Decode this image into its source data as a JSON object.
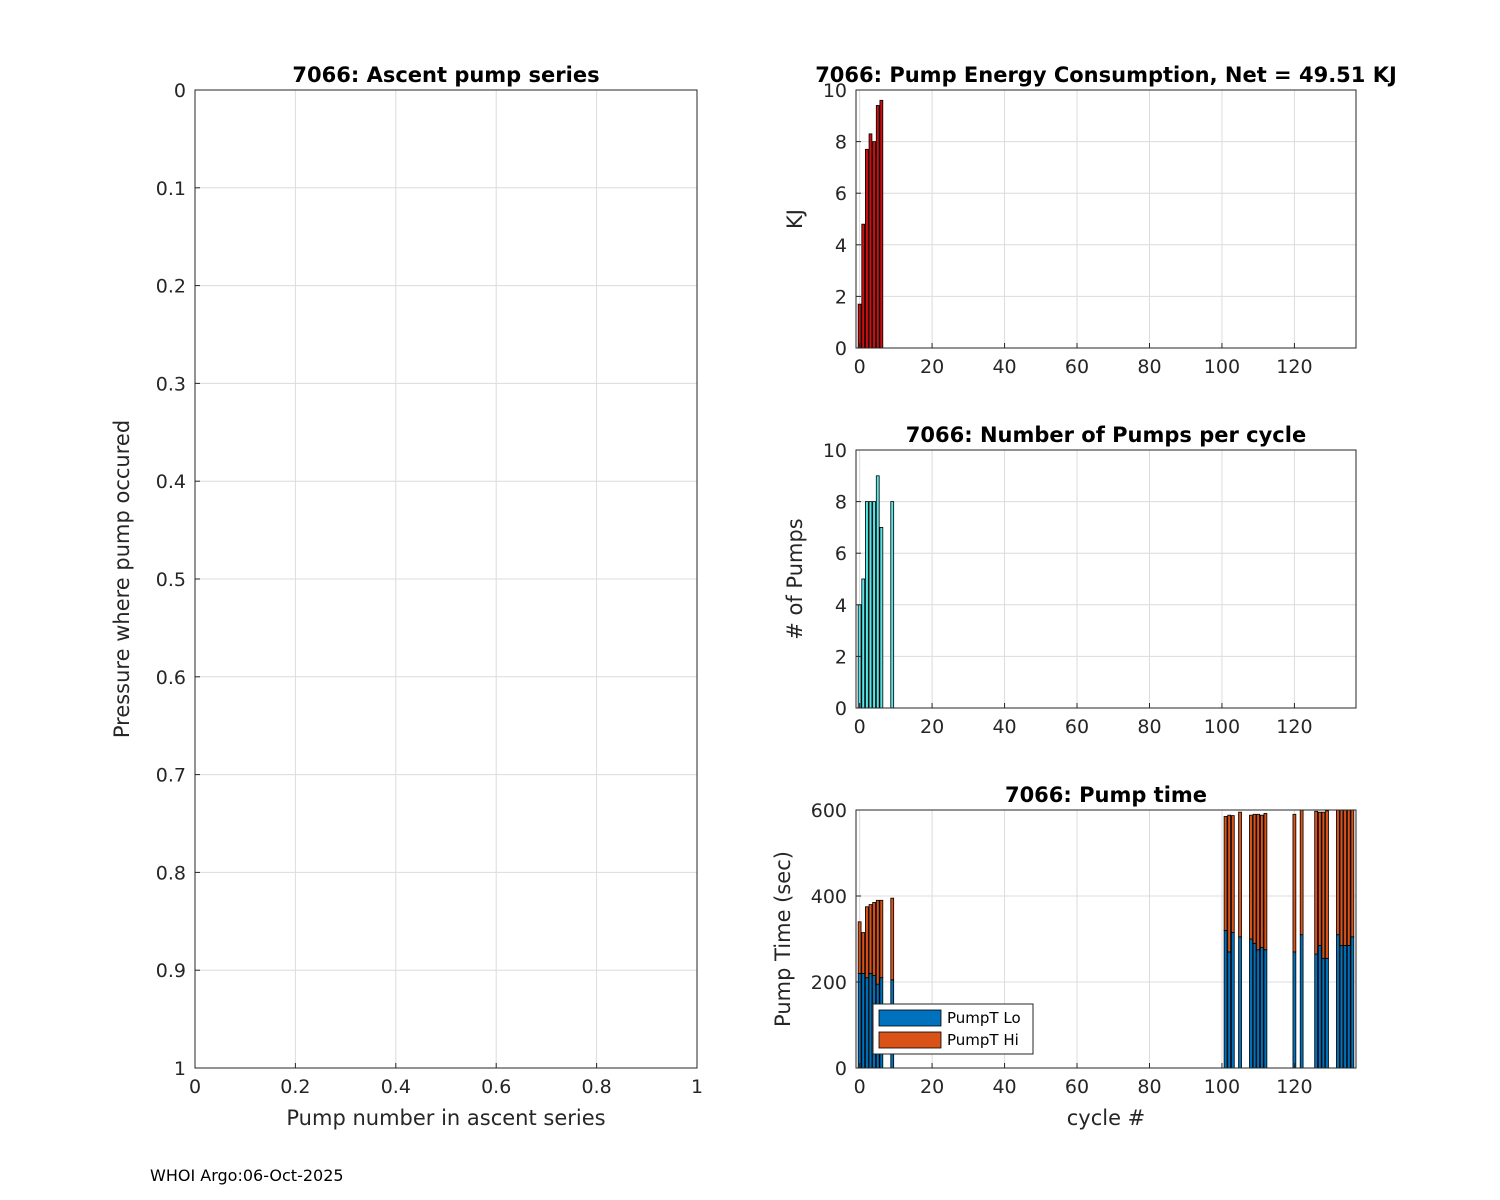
{
  "footer": "WHOI Argo:06-Oct-2025",
  "colors": {
    "grid": "#dcdcdc",
    "axis": "#262626",
    "energy_bar": "#cc1010",
    "pumps_bar": "#5ae6e6",
    "pumpt_lo": "#0072bd",
    "pumpt_hi": "#d95319"
  },
  "chart_data": [
    {
      "id": "ascent",
      "type": "scatter",
      "title": "7066: Ascent pump series",
      "xlabel": "Pump number in ascent series",
      "ylabel": "Pressure where pump occured",
      "xlim": [
        0,
        1
      ],
      "ylim": [
        0,
        1
      ],
      "y_reversed": true,
      "xticks": [
        0,
        0.2,
        0.4,
        0.6,
        0.8,
        1
      ],
      "xtick_labels": [
        "0",
        "0.2",
        "0.4",
        "0.6",
        "0.8",
        "1"
      ],
      "yticks": [
        0,
        0.1,
        0.2,
        0.3,
        0.4,
        0.5,
        0.6,
        0.7,
        0.8,
        0.9,
        1
      ],
      "ytick_labels": [
        "0",
        "0.1",
        "0.2",
        "0.3",
        "0.4",
        "0.5",
        "0.6",
        "0.7",
        "0.8",
        "0.9",
        "1"
      ],
      "grid": true,
      "points": []
    },
    {
      "id": "energy",
      "type": "bar",
      "title": "7066: Pump Energy Consumption,  Net =  49.51 KJ",
      "xlabel": "",
      "ylabel": "KJ",
      "xlim": [
        -1,
        137
      ],
      "ylim": [
        0,
        10
      ],
      "xticks": [
        0,
        20,
        40,
        60,
        80,
        100,
        120
      ],
      "xtick_labels": [
        "0",
        "20",
        "40",
        "60",
        "80",
        "100",
        "120"
      ],
      "yticks": [
        0,
        2,
        4,
        6,
        8,
        10
      ],
      "ytick_labels": [
        "0",
        "2",
        "4",
        "6",
        "8",
        "10"
      ],
      "grid": true,
      "x": [
        0,
        1,
        2,
        3,
        4,
        5,
        6
      ],
      "values": [
        1.7,
        4.8,
        7.7,
        8.3,
        8.0,
        9.4,
        9.6
      ]
    },
    {
      "id": "pumps",
      "type": "bar",
      "title": "7066: Number of Pumps per cycle",
      "xlabel": "",
      "ylabel": "# of Pumps",
      "xlim": [
        -1,
        137
      ],
      "ylim": [
        0,
        10
      ],
      "xticks": [
        0,
        20,
        40,
        60,
        80,
        100,
        120
      ],
      "xtick_labels": [
        "0",
        "20",
        "40",
        "60",
        "80",
        "100",
        "120"
      ],
      "yticks": [
        0,
        2,
        4,
        6,
        8,
        10
      ],
      "ytick_labels": [
        "0",
        "2",
        "4",
        "6",
        "8",
        "10"
      ],
      "grid": true,
      "x": [
        0,
        1,
        2,
        3,
        4,
        5,
        6,
        9
      ],
      "values": [
        4,
        5,
        8,
        8,
        8,
        9,
        7,
        8
      ]
    },
    {
      "id": "pumptime",
      "type": "bar",
      "stacked": true,
      "title": "7066: Pump time",
      "xlabel": "cycle #",
      "ylabel": "Pump Time (sec)",
      "xlim": [
        -1,
        137
      ],
      "ylim": [
        0,
        600
      ],
      "xticks": [
        0,
        20,
        40,
        60,
        80,
        100,
        120
      ],
      "xtick_labels": [
        "0",
        "20",
        "40",
        "60",
        "80",
        "100",
        "120"
      ],
      "yticks": [
        0,
        200,
        400,
        600
      ],
      "ytick_labels": [
        "0",
        "200",
        "400",
        "600"
      ],
      "grid": true,
      "legend": {
        "location": "bottom-left",
        "entries": [
          "PumpT Lo",
          "PumpT Hi"
        ]
      },
      "x": [
        0,
        1,
        2,
        3,
        4,
        5,
        6,
        9,
        101,
        102,
        103,
        105,
        108,
        109,
        110,
        111,
        112,
        120,
        122,
        126,
        127,
        128,
        129,
        132,
        133,
        134,
        135,
        136
      ],
      "series": [
        {
          "name": "PumpT Lo",
          "values": [
            220,
            220,
            210,
            220,
            215,
            195,
            210,
            205,
            320,
            270,
            315,
            305,
            300,
            290,
            275,
            280,
            275,
            270,
            310,
            265,
            285,
            255,
            255,
            310,
            285,
            285,
            285,
            305
          ]
        },
        {
          "name": "PumpT Hi",
          "values": [
            120,
            95,
            165,
            160,
            170,
            195,
            180,
            190,
            265,
            318,
            272,
            290,
            288,
            300,
            315,
            308,
            317,
            320,
            290,
            332,
            310,
            340,
            343,
            290,
            315,
            315,
            315,
            295
          ]
        }
      ]
    }
  ]
}
